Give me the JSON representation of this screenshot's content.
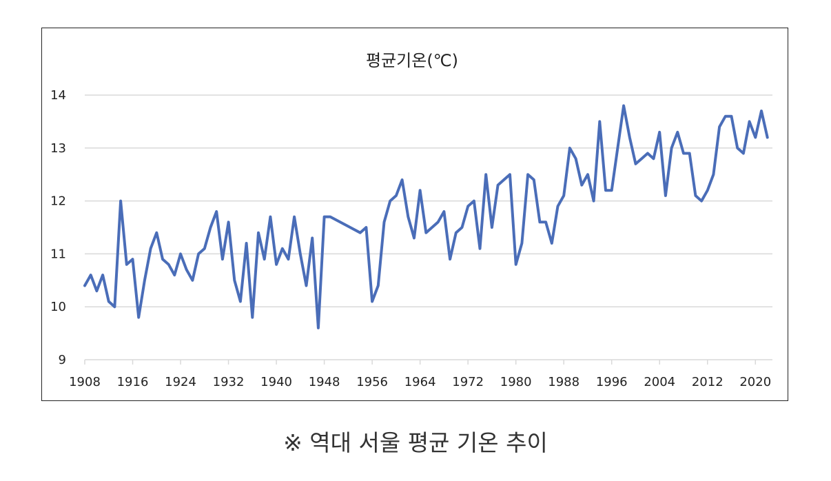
{
  "chart_data": {
    "type": "line",
    "title": "평균기온(℃)",
    "xlabel": "",
    "ylabel": "",
    "ylim": [
      9,
      14
    ],
    "xlim": [
      1908,
      2022
    ],
    "y_ticks": [
      "9",
      "10",
      "11",
      "12",
      "13",
      "14"
    ],
    "x_ticks": [
      "1908",
      "1916",
      "1924",
      "1932",
      "1940",
      "1948",
      "1956",
      "1964",
      "1972",
      "1980",
      "1988",
      "1996",
      "2004",
      "2012",
      "2020"
    ],
    "grid": true,
    "line_color": "#4A6DB8",
    "series": [
      {
        "name": "평균기온",
        "x": [
          1908,
          1909,
          1910,
          1911,
          1912,
          1913,
          1914,
          1915,
          1916,
          1917,
          1918,
          1919,
          1920,
          1921,
          1922,
          1923,
          1924,
          1925,
          1926,
          1927,
          1928,
          1929,
          1930,
          1931,
          1932,
          1933,
          1934,
          1935,
          1936,
          1937,
          1938,
          1939,
          1940,
          1941,
          1942,
          1943,
          1944,
          1945,
          1946,
          1947,
          1948,
          1949,
          1954,
          1955,
          1956,
          1957,
          1958,
          1959,
          1960,
          1961,
          1962,
          1963,
          1964,
          1965,
          1966,
          1967,
          1968,
          1969,
          1970,
          1971,
          1972,
          1973,
          1974,
          1975,
          1976,
          1977,
          1978,
          1979,
          1980,
          1981,
          1982,
          1983,
          1984,
          1985,
          1986,
          1987,
          1988,
          1989,
          1990,
          1991,
          1992,
          1993,
          1994,
          1995,
          1996,
          1997,
          1998,
          1999,
          2000,
          2001,
          2002,
          2003,
          2004,
          2005,
          2006,
          2007,
          2008,
          2009,
          2010,
          2011,
          2012,
          2013,
          2014,
          2015,
          2016,
          2017,
          2018,
          2019,
          2020,
          2021,
          2022
        ],
        "values": [
          10.4,
          10.6,
          10.3,
          10.6,
          10.1,
          10.0,
          12.0,
          10.8,
          10.9,
          9.8,
          10.5,
          11.1,
          11.4,
          10.9,
          10.8,
          10.6,
          11.0,
          10.7,
          10.5,
          11.0,
          11.1,
          11.5,
          11.8,
          10.9,
          11.6,
          10.5,
          10.1,
          11.2,
          9.8,
          11.4,
          10.9,
          11.7,
          10.8,
          11.1,
          10.9,
          11.7,
          11.0,
          10.4,
          11.3,
          9.6,
          11.7,
          11.7,
          11.4,
          11.5,
          10.1,
          10.4,
          11.6,
          12.0,
          12.1,
          12.4,
          11.7,
          11.3,
          12.2,
          11.4,
          11.5,
          11.6,
          11.8,
          10.9,
          11.4,
          11.5,
          11.9,
          12.0,
          11.1,
          12.5,
          11.5,
          12.3,
          12.4,
          12.5,
          10.8,
          11.2,
          12.5,
          12.4,
          11.6,
          11.6,
          11.2,
          11.9,
          12.1,
          13.0,
          12.8,
          12.3,
          12.5,
          12.0,
          13.5,
          12.2,
          12.2,
          13.0,
          13.8,
          13.2,
          12.7,
          12.8,
          12.9,
          12.8,
          13.3,
          12.1,
          13.0,
          13.3,
          12.9,
          12.9,
          12.1,
          12.0,
          12.2,
          12.5,
          13.4,
          13.6,
          13.6,
          13.0,
          12.9,
          13.5,
          13.2,
          13.7,
          13.2
        ]
      }
    ]
  },
  "caption": "※ 역대 서울 평균 기온 추이"
}
